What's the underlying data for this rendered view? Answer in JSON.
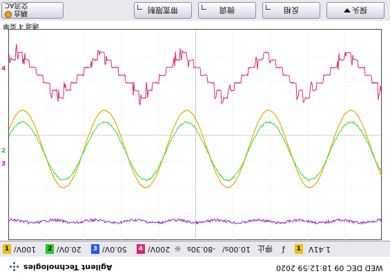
{
  "softkeys": {
    "coupling": {
      "line1": "交流AC",
      "line2": "耦合"
    },
    "bw_limit": "带宽限制",
    "fine": "微调",
    "invert": "反相",
    "next": "探头"
  },
  "status_line": "通道 4 菜单",
  "channels": [
    {
      "num": "1",
      "scale": "100V/",
      "color": "#f0c000"
    },
    {
      "num": "2",
      "scale": "20.0V/",
      "color": "#22cc22"
    },
    {
      "num": "3",
      "scale": "50.0V/",
      "color": "#2255ff"
    },
    {
      "num": "4",
      "scale": "200V/",
      "color": "#dd2277"
    }
  ],
  "timebase": {
    "delay": "-80.30s",
    "scale": "10.00s/",
    "mode": "停止"
  },
  "trigger": {
    "channel": "1",
    "level": "1.41V"
  },
  "brand": "Agilent Technologies",
  "datetime": "WED DEC 09 18:12:59 2020",
  "traces": {
    "ch4_color": "#dd2277",
    "ch1_color": "#e8a800",
    "ch2_color": "#33dd33",
    "ch3_color": "#9922cc"
  },
  "ground_markers": {
    "ch4": "4",
    "ch2": "2",
    "ch3": "3"
  }
}
